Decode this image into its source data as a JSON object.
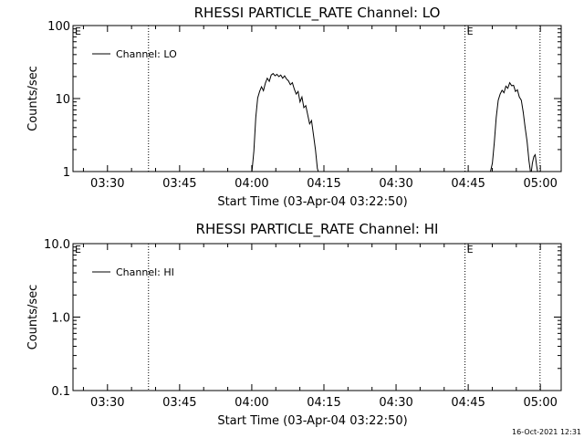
{
  "footer": {
    "timestamp": "16-Oct-2021 12:31"
  },
  "chart_data": [
    {
      "type": "line",
      "title": "RHESSI PARTICLE_RATE Channel: LO",
      "xlabel": "Start Time (03-Apr-04 03:22:50)",
      "ylabel": "Counts/sec",
      "yscale": "log",
      "ylim": [
        1,
        100
      ],
      "xlim": [
        0,
        101.5
      ],
      "yticks": [
        1,
        10,
        100
      ],
      "ytick_labels": [
        "1",
        "10",
        "100"
      ],
      "xticks": [
        7.17,
        22.17,
        37.17,
        52.17,
        67.17,
        82.17,
        97.17
      ],
      "xtick_labels": [
        "03:30",
        "03:45",
        "04:00",
        "04:15",
        "04:30",
        "04:45",
        "05:00"
      ],
      "legend": {
        "placement": "top-left",
        "entries": [
          "Channel: LO"
        ]
      },
      "vlines": [
        {
          "x": 15.7,
          "style": "dotted"
        },
        {
          "x": 81.5,
          "style": "dotted",
          "label": "E"
        },
        {
          "x": 97.1,
          "style": "dotted"
        }
      ],
      "corner_flags": [
        "E"
      ],
      "series": [
        {
          "name": "Channel: LO",
          "segments": [
            [
              [
                37.2,
                1
              ],
              [
                37.6,
                1.9
              ],
              [
                38.0,
                5.5
              ],
              [
                38.4,
                10.2
              ],
              [
                38.8,
                12.5
              ],
              [
                39.2,
                14.5
              ],
              [
                39.6,
                12.8
              ],
              [
                40.0,
                16.2
              ],
              [
                40.4,
                19.0
              ],
              [
                40.8,
                17.2
              ],
              [
                41.2,
                21.0
              ],
              [
                41.6,
                22.0
              ],
              [
                42.0,
                20.5
              ],
              [
                42.4,
                21.5
              ],
              [
                42.8,
                20.0
              ],
              [
                43.2,
                21.0
              ],
              [
                43.6,
                19.0
              ],
              [
                44.0,
                20.5
              ],
              [
                44.4,
                18.5
              ],
              [
                44.8,
                17.5
              ],
              [
                45.2,
                15.5
              ],
              [
                45.6,
                16.5
              ],
              [
                46.0,
                13.5
              ],
              [
                46.4,
                11.5
              ],
              [
                46.8,
                12.5
              ],
              [
                47.2,
                9.0
              ],
              [
                47.6,
                10.5
              ],
              [
                48.0,
                7.5
              ],
              [
                48.4,
                8.0
              ],
              [
                48.8,
                6.0
              ],
              [
                49.2,
                4.5
              ],
              [
                49.6,
                5.0
              ],
              [
                50.0,
                3.2
              ],
              [
                50.4,
                2.0
              ],
              [
                50.8,
                1.1
              ],
              [
                51.0,
                1
              ]
            ],
            [
              [
                86.8,
                1
              ],
              [
                87.2,
                1.3
              ],
              [
                87.6,
                2.5
              ],
              [
                88.0,
                5.5
              ],
              [
                88.4,
                9.5
              ],
              [
                88.8,
                11.5
              ],
              [
                89.2,
                13.0
              ],
              [
                89.6,
                12.0
              ],
              [
                90.0,
                14.8
              ],
              [
                90.4,
                13.8
              ],
              [
                90.8,
                16.5
              ],
              [
                91.2,
                15.0
              ],
              [
                91.6,
                15.2
              ],
              [
                92.0,
                12.5
              ],
              [
                92.4,
                13.2
              ],
              [
                92.8,
                10.5
              ],
              [
                93.2,
                9.5
              ],
              [
                93.6,
                6.5
              ],
              [
                94.0,
                4.0
              ],
              [
                94.4,
                2.6
              ],
              [
                94.8,
                1.4
              ],
              [
                95.1,
                1
              ]
            ],
            [
              [
                95.3,
                1
              ],
              [
                95.5,
                1.3
              ],
              [
                95.8,
                1.6
              ],
              [
                96.1,
                1.7
              ],
              [
                96.4,
                1.2
              ],
              [
                96.6,
                1
              ]
            ]
          ]
        }
      ]
    },
    {
      "type": "line",
      "title": "RHESSI PARTICLE_RATE Channel: HI",
      "xlabel": "Start Time (03-Apr-04 03:22:50)",
      "ylabel": "Counts/sec",
      "yscale": "log",
      "ylim": [
        0.1,
        10
      ],
      "xlim": [
        0,
        101.5
      ],
      "yticks": [
        0.1,
        1,
        10
      ],
      "ytick_labels": [
        "0.1",
        "1.0",
        "10.0"
      ],
      "xticks": [
        7.17,
        22.17,
        37.17,
        52.17,
        67.17,
        82.17,
        97.17
      ],
      "xtick_labels": [
        "03:30",
        "03:45",
        "04:00",
        "04:15",
        "04:30",
        "04:45",
        "05:00"
      ],
      "legend": {
        "placement": "top-left",
        "entries": [
          "Channel: HI"
        ]
      },
      "vlines": [
        {
          "x": 15.7,
          "style": "dotted"
        },
        {
          "x": 81.5,
          "style": "dotted",
          "label": "E"
        },
        {
          "x": 97.1,
          "style": "dotted"
        }
      ],
      "corner_flags": [
        "E"
      ],
      "series": [
        {
          "name": "Channel: HI",
          "segments": []
        }
      ]
    }
  ]
}
